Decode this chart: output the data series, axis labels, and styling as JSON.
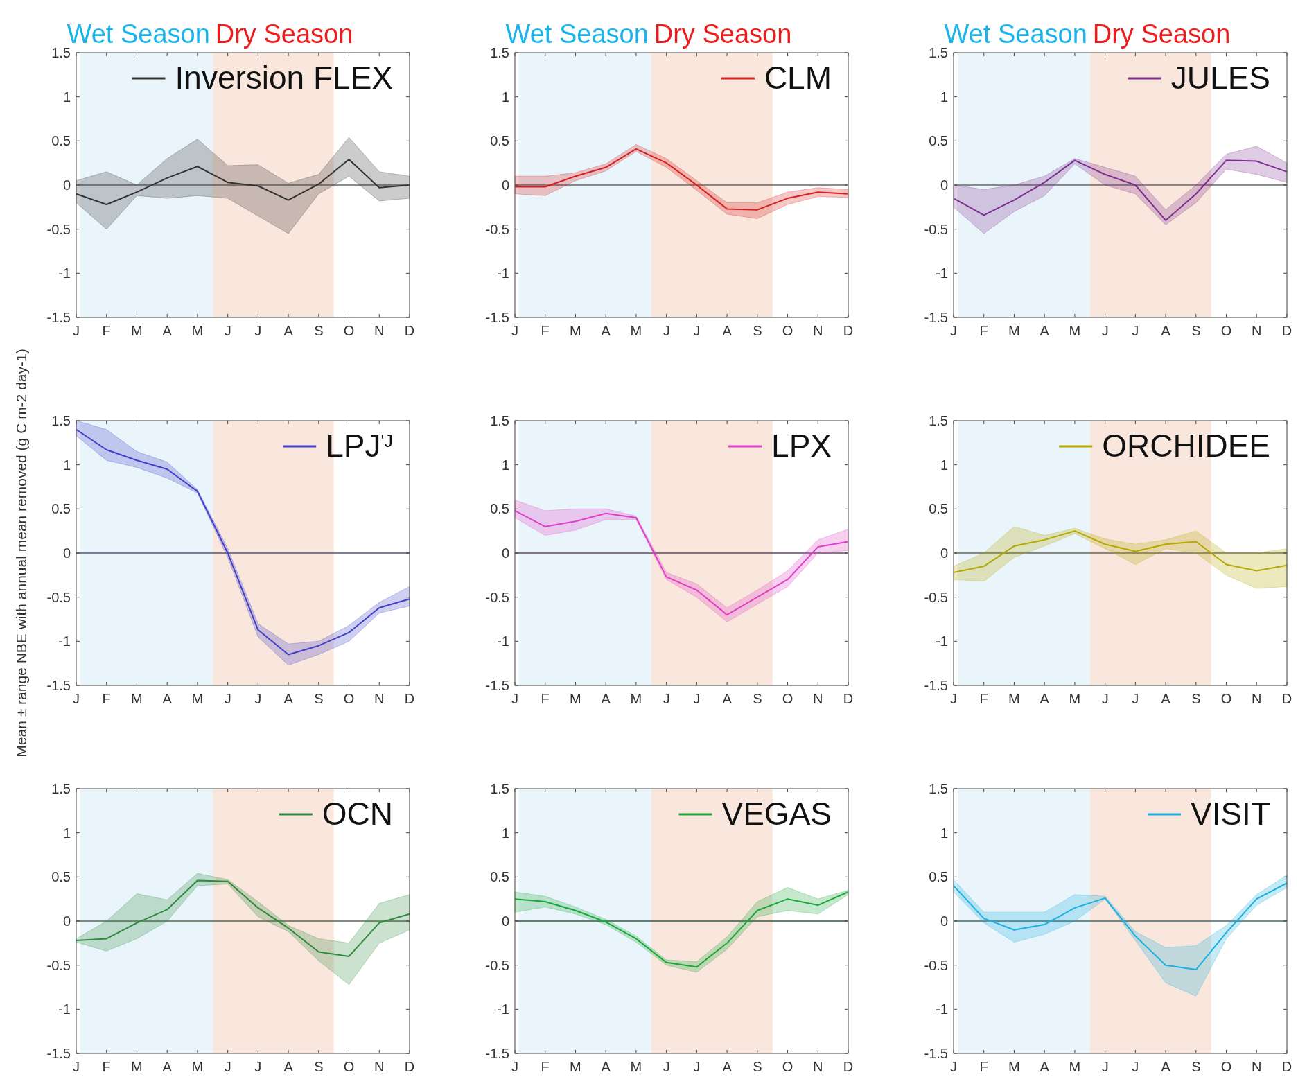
{
  "chart_data": [
    {
      "type": "line",
      "categories": [
        "J",
        "F",
        "M",
        "A",
        "M",
        "J",
        "J",
        "A",
        "S",
        "O",
        "N",
        "D"
      ],
      "ylim": [
        -1.5,
        1.5
      ],
      "yticks": [
        -1.5,
        -1,
        -0.5,
        0,
        0.5,
        1,
        1.5
      ],
      "legend": "top right",
      "annotations": [
        "Wet Season",
        "Dry Season"
      ],
      "ref_lines": [
        {
          "axis": "y",
          "value": 0,
          "color": "#666666"
        }
      ],
      "series": [
        {
          "name": "Inversion FLEX",
          "color": "#333333",
          "values": [
            -0.1,
            -0.22,
            -0.08,
            0.08,
            0.21,
            0.03,
            -0.01,
            -0.17,
            0.01,
            0.29,
            -0.03,
            0.0
          ],
          "lower": [
            -0.2,
            -0.5,
            -0.12,
            -0.15,
            -0.12,
            -0.15,
            -0.35,
            -0.55,
            -0.1,
            0.1,
            -0.18,
            -0.15
          ],
          "upper": [
            0.05,
            0.15,
            0.0,
            0.3,
            0.52,
            0.22,
            0.23,
            0.02,
            0.12,
            0.54,
            0.15,
            0.1
          ]
        }
      ]
    },
    {
      "type": "line",
      "categories": [
        "J",
        "F",
        "M",
        "A",
        "M",
        "J",
        "J",
        "A",
        "S",
        "O",
        "N",
        "D"
      ],
      "ylim": [
        -1.5,
        1.5
      ],
      "yticks": [
        -1.5,
        -1,
        -0.5,
        0,
        0.5,
        1,
        1.5
      ],
      "legend": "top right",
      "annotations": [
        "Wet Season",
        "Dry Season"
      ],
      "ref_lines": [
        {
          "axis": "y",
          "value": 0,
          "color": "#666666"
        }
      ],
      "series": [
        {
          "name": "CLM",
          "color": "#d62020",
          "values": [
            -0.02,
            -0.02,
            0.1,
            0.2,
            0.41,
            0.25,
            0.0,
            -0.27,
            -0.28,
            -0.15,
            -0.08,
            -0.1
          ],
          "lower": [
            -0.1,
            -0.12,
            0.05,
            0.16,
            0.38,
            0.2,
            -0.06,
            -0.33,
            -0.38,
            -0.22,
            -0.13,
            -0.14
          ],
          "upper": [
            0.1,
            0.1,
            0.14,
            0.24,
            0.46,
            0.3,
            0.05,
            -0.2,
            -0.2,
            -0.08,
            -0.03,
            -0.05
          ]
        }
      ]
    },
    {
      "type": "line",
      "categories": [
        "J",
        "F",
        "M",
        "A",
        "M",
        "J",
        "J",
        "A",
        "S",
        "O",
        "N",
        "D"
      ],
      "ylim": [
        -1.5,
        1.5
      ],
      "yticks": [
        -1.5,
        -1,
        -0.5,
        0,
        0.5,
        1,
        1.5
      ],
      "legend": "top right",
      "annotations": [
        "Wet Season",
        "Dry Season"
      ],
      "ref_lines": [
        {
          "axis": "y",
          "value": 0,
          "color": "#666666"
        }
      ],
      "series": [
        {
          "name": "JULES",
          "color": "#7e2f8e",
          "values": [
            -0.15,
            -0.34,
            -0.17,
            0.03,
            0.28,
            0.12,
            0.0,
            -0.4,
            -0.1,
            0.28,
            0.27,
            0.15
          ],
          "lower": [
            -0.25,
            -0.55,
            -0.3,
            -0.12,
            0.24,
            0.0,
            -0.1,
            -0.45,
            -0.2,
            0.18,
            0.12,
            0.03
          ],
          "upper": [
            0.0,
            -0.05,
            0.0,
            0.1,
            0.3,
            0.2,
            0.1,
            -0.28,
            0.0,
            0.35,
            0.44,
            0.25
          ]
        }
      ]
    },
    {
      "type": "line",
      "ylabel": "Mean ± range NBE with annual mean removed (g C m-2 day-1)",
      "categories": [
        "J",
        "F",
        "M",
        "A",
        "M",
        "J",
        "J",
        "A",
        "S",
        "O",
        "N",
        "D"
      ],
      "ylim": [
        -1.5,
        1.5
      ],
      "yticks": [
        -1.5,
        -1,
        -0.5,
        0,
        0.5,
        1,
        1.5
      ],
      "legend": "top right",
      "ref_lines": [
        {
          "axis": "y",
          "value": 0,
          "color": "#555577"
        }
      ],
      "series": [
        {
          "name": "LPJ$^{'J}$",
          "color": "#4040c8",
          "values": [
            1.4,
            1.17,
            1.05,
            0.95,
            0.7,
            0.0,
            -0.87,
            -1.15,
            -1.05,
            -0.9,
            -0.62,
            -0.52
          ],
          "lower": [
            1.33,
            1.05,
            0.97,
            0.85,
            0.68,
            -0.05,
            -0.95,
            -1.27,
            -1.15,
            -1.0,
            -0.68,
            -0.6
          ],
          "upper": [
            1.5,
            1.4,
            1.15,
            1.03,
            0.72,
            0.05,
            -0.8,
            -1.03,
            -1.0,
            -0.82,
            -0.56,
            -0.38
          ]
        }
      ]
    },
    {
      "type": "line",
      "categories": [
        "J",
        "F",
        "M",
        "A",
        "M",
        "J",
        "J",
        "A",
        "S",
        "O",
        "N",
        "D"
      ],
      "ylim": [
        -1.5,
        1.5
      ],
      "yticks": [
        -1.5,
        -1,
        -0.5,
        0,
        0.5,
        1,
        1.5
      ],
      "legend": "top right",
      "ref_lines": [
        {
          "axis": "y",
          "value": 0,
          "color": "#664466"
        }
      ],
      "series": [
        {
          "name": "LPX",
          "color": "#e040c8",
          "values": [
            0.48,
            0.3,
            0.36,
            0.45,
            0.4,
            -0.27,
            -0.42,
            -0.7,
            -0.5,
            -0.3,
            0.07,
            0.13
          ],
          "lower": [
            0.4,
            0.2,
            0.26,
            0.38,
            0.38,
            -0.3,
            -0.5,
            -0.78,
            -0.58,
            -0.38,
            0.0,
            0.03
          ],
          "upper": [
            0.6,
            0.48,
            0.5,
            0.5,
            0.42,
            -0.22,
            -0.35,
            -0.62,
            -0.42,
            -0.2,
            0.15,
            0.27
          ]
        }
      ]
    },
    {
      "type": "line",
      "categories": [
        "J",
        "F",
        "M",
        "A",
        "M",
        "J",
        "J",
        "A",
        "S",
        "O",
        "N",
        "D"
      ],
      "ylim": [
        -1.5,
        1.5
      ],
      "yticks": [
        -1.5,
        -1,
        -0.5,
        0,
        0.5,
        1,
        1.5
      ],
      "legend": "top right",
      "ref_lines": [
        {
          "axis": "y",
          "value": 0,
          "color": "#666655"
        }
      ],
      "series": [
        {
          "name": "ORCHIDEE",
          "color": "#b5a800",
          "values": [
            -0.22,
            -0.15,
            0.08,
            0.15,
            0.25,
            0.1,
            0.02,
            0.1,
            0.13,
            -0.13,
            -0.2,
            -0.14
          ],
          "lower": [
            -0.3,
            -0.32,
            -0.05,
            0.08,
            0.22,
            0.05,
            -0.13,
            0.05,
            0.0,
            -0.25,
            -0.4,
            -0.38
          ],
          "upper": [
            -0.15,
            0.0,
            0.3,
            0.2,
            0.28,
            0.16,
            0.1,
            0.15,
            0.25,
            0.0,
            0.0,
            0.05
          ]
        }
      ]
    },
    {
      "type": "line",
      "categories": [
        "J",
        "F",
        "M",
        "A",
        "M",
        "J",
        "J",
        "A",
        "S",
        "O",
        "N",
        "D"
      ],
      "ylim": [
        -1.5,
        1.5
      ],
      "yticks": [
        -1.5,
        -1,
        -0.5,
        0,
        0.5,
        1,
        1.5
      ],
      "legend": "top right",
      "ref_lines": [
        {
          "axis": "y",
          "value": 0,
          "color": "#556655"
        }
      ],
      "series": [
        {
          "name": "OCN",
          "color": "#2e8b3e",
          "values": [
            -0.22,
            -0.2,
            -0.02,
            0.13,
            0.46,
            0.45,
            0.15,
            -0.08,
            -0.35,
            -0.4,
            -0.02,
            0.08
          ],
          "lower": [
            -0.24,
            -0.34,
            -0.2,
            0.0,
            0.4,
            0.42,
            0.05,
            -0.12,
            -0.45,
            -0.72,
            -0.25,
            -0.1
          ],
          "upper": [
            -0.2,
            0.0,
            0.31,
            0.24,
            0.54,
            0.47,
            0.22,
            -0.05,
            -0.2,
            -0.25,
            0.2,
            0.3
          ]
        }
      ]
    },
    {
      "type": "line",
      "categories": [
        "J",
        "F",
        "M",
        "A",
        "M",
        "J",
        "J",
        "A",
        "S",
        "O",
        "N",
        "D"
      ],
      "ylim": [
        -1.5,
        1.5
      ],
      "yticks": [
        -1.5,
        -1,
        -0.5,
        0,
        0.5,
        1,
        1.5
      ],
      "legend": "top right",
      "ref_lines": [
        {
          "axis": "y",
          "value": 0,
          "color": "#335544"
        }
      ],
      "series": [
        {
          "name": "VEGAS",
          "color": "#1aa83a",
          "values": [
            0.25,
            0.22,
            0.12,
            -0.01,
            -0.2,
            -0.47,
            -0.52,
            -0.25,
            0.12,
            0.25,
            0.18,
            0.33
          ],
          "lower": [
            0.1,
            0.16,
            0.08,
            -0.04,
            -0.24,
            -0.5,
            -0.58,
            -0.32,
            0.05,
            0.12,
            0.08,
            0.3
          ],
          "upper": [
            0.33,
            0.28,
            0.16,
            0.02,
            -0.17,
            -0.44,
            -0.46,
            -0.18,
            0.22,
            0.38,
            0.25,
            0.35
          ]
        }
      ]
    },
    {
      "type": "line",
      "categories": [
        "J",
        "F",
        "M",
        "A",
        "M",
        "J",
        "J",
        "A",
        "S",
        "O",
        "N",
        "D"
      ],
      "ylim": [
        -1.5,
        1.5
      ],
      "yticks": [
        -1.5,
        -1,
        -0.5,
        0,
        0.5,
        1,
        1.5
      ],
      "legend": "top right",
      "ref_lines": [
        {
          "axis": "y",
          "value": 0,
          "color": "#446666"
        }
      ],
      "series": [
        {
          "name": "VISIT",
          "color": "#1ab0e0",
          "values": [
            0.4,
            0.03,
            -0.1,
            -0.04,
            0.15,
            0.26,
            -0.17,
            -0.5,
            -0.55,
            -0.13,
            0.25,
            0.43
          ],
          "lower": [
            0.33,
            -0.02,
            -0.24,
            -0.15,
            0.0,
            0.25,
            -0.22,
            -0.7,
            -0.85,
            -0.2,
            0.18,
            0.38
          ],
          "upper": [
            0.47,
            0.1,
            0.1,
            0.1,
            0.3,
            0.28,
            -0.12,
            -0.3,
            -0.28,
            -0.05,
            0.3,
            0.52
          ]
        }
      ]
    }
  ]
}
